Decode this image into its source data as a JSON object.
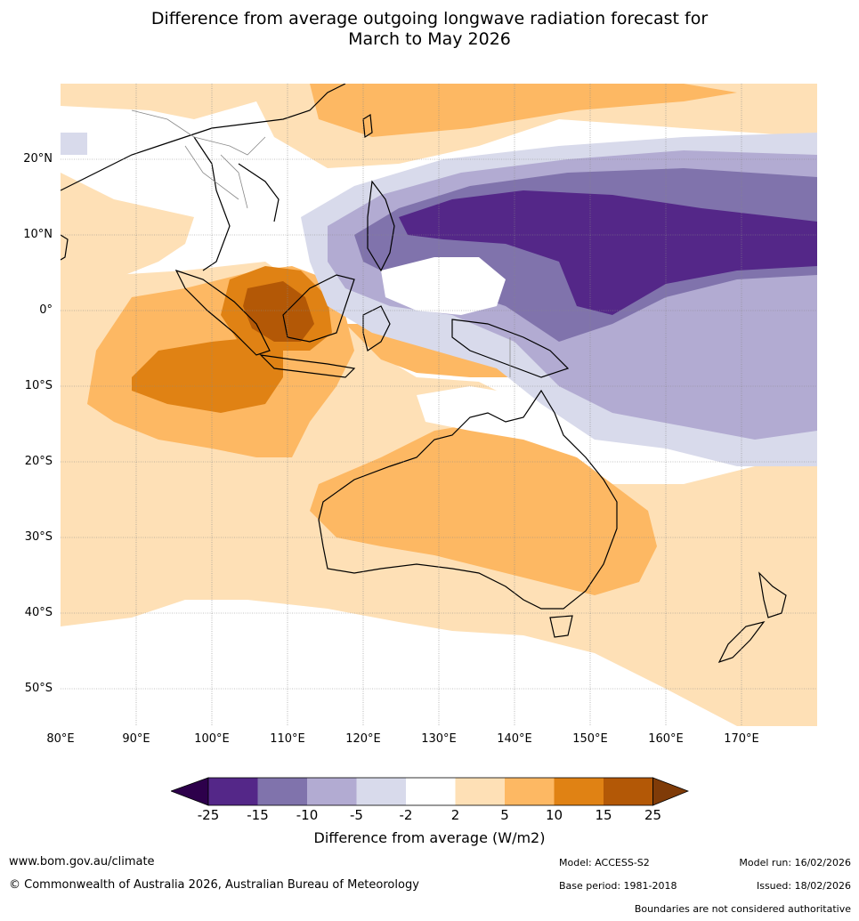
{
  "title": {
    "line1": "Difference from average outgoing longwave radiation forecast for",
    "line2": "March to May 2026"
  },
  "axes": {
    "lat_ticks": [
      "20°N",
      "10°N",
      "0°",
      "10°S",
      "20°S",
      "30°S",
      "40°S",
      "50°S"
    ],
    "lon_ticks": [
      "80°E",
      "90°E",
      "100°E",
      "110°E",
      "120°E",
      "130°E",
      "140°E",
      "150°E",
      "160°E",
      "170°E"
    ]
  },
  "colorbar": {
    "label": "Difference from average (W/m2)",
    "ticks": [
      "-25",
      "-15",
      "-10",
      "-5",
      "-2",
      "2",
      "5",
      "10",
      "15",
      "25"
    ],
    "colors": [
      "#2d004b",
      "#542788",
      "#8073ac",
      "#b2abd2",
      "#d8daeb",
      "#ffffff",
      "#fee0b6",
      "#fdb863",
      "#e08214",
      "#b35806",
      "#7f3b08"
    ]
  },
  "footer": {
    "website": "www.bom.gov.au/climate",
    "copyright": "© Commonwealth of Australia 2026, Australian Bureau of Meteorology",
    "model": "Model: ACCESS-S2",
    "base_period": "Base period: 1981-2018",
    "model_run": "Model run: 16/02/2026",
    "issued": "Issued: 18/02/2026",
    "disclaimer": "Boundaries are not considered authoritative"
  }
}
